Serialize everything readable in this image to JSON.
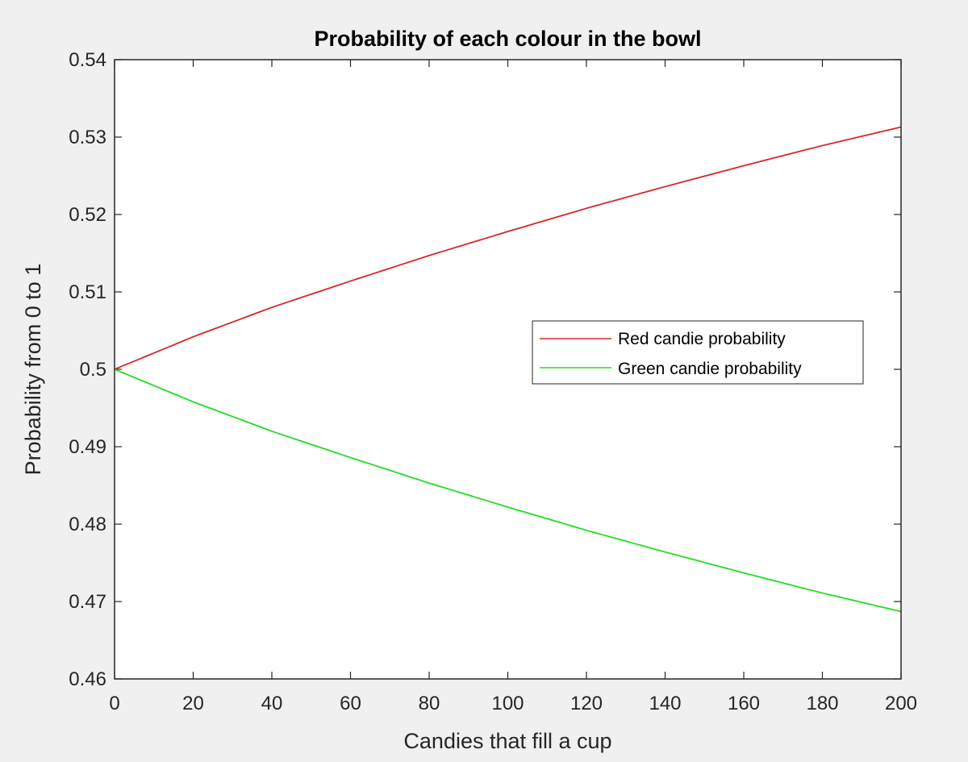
{
  "chart_data": {
    "type": "line",
    "title": "Probability of each colour in the bowl",
    "xlabel": "Candies that fill a cup",
    "ylabel": "Probability from 0 to 1",
    "xlim": [
      0,
      200
    ],
    "ylim": [
      0.46,
      0.54
    ],
    "x_ticks": [
      "0",
      "20",
      "40",
      "60",
      "80",
      "100",
      "120",
      "140",
      "160",
      "180",
      "200"
    ],
    "y_ticks": [
      "0.46",
      "0.47",
      "0.48",
      "0.49",
      "0.5",
      "0.51",
      "0.52",
      "0.53",
      "0.54"
    ],
    "grid": false,
    "legend_position": "right",
    "x": [
      0,
      20,
      40,
      60,
      80,
      100,
      120,
      140,
      160,
      180,
      200
    ],
    "series": [
      {
        "name": "Red candie probability",
        "color": "#d62728",
        "values": [
          0.5,
          0.5042,
          0.508,
          0.5114,
          0.5147,
          0.5178,
          0.5208,
          0.5236,
          0.5263,
          0.5289,
          0.5313
        ]
      },
      {
        "name": "Green candie probability",
        "color": "#22dd22",
        "values": [
          0.5,
          0.4958,
          0.492,
          0.4886,
          0.4853,
          0.4822,
          0.4792,
          0.4764,
          0.4737,
          0.4711,
          0.4687
        ]
      }
    ]
  }
}
